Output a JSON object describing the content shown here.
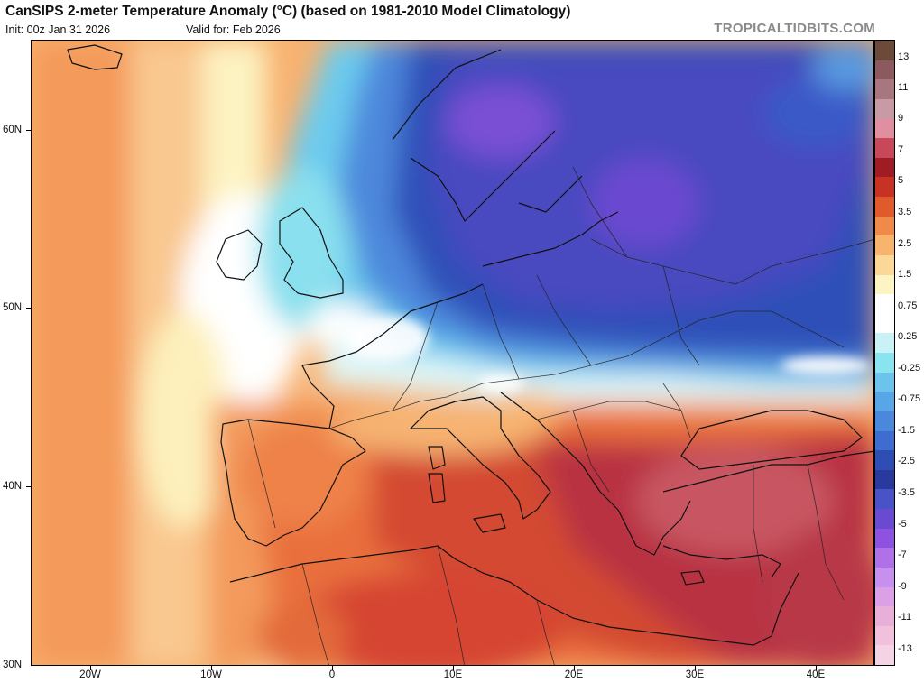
{
  "header": {
    "title": "CanSIPS 2-meter Temperature Anomaly (°C) (based on 1981-2010 Model Climatology)",
    "init": "Init: 00z Jan 31 2026",
    "valid": "Valid for: Feb 2026",
    "brand": "TROPICALTIDBITS.COM"
  },
  "map": {
    "lat_labels": [
      "60N",
      "50N",
      "40N",
      "30N"
    ],
    "lon_labels": [
      "20W",
      "10W",
      "0",
      "10E",
      "20E",
      "30E",
      "40E"
    ]
  },
  "colorbar": {
    "labels": [
      "13",
      "11",
      "9",
      "7",
      "5",
      "3.5",
      "2.5",
      "1.5",
      "0.75",
      "0.25",
      "-0.25",
      "-0.75",
      "-1.5",
      "-2.5",
      "-3.5",
      "-5",
      "-7",
      "-9",
      "-11",
      "-13"
    ],
    "colors": [
      "#6b4a3a",
      "#8c5a5e",
      "#a7767e",
      "#c89aa6",
      "#e08fa0",
      "#c8485a",
      "#a01c24",
      "#c83222",
      "#e05a2c",
      "#ef8a4a",
      "#f7b46c",
      "#fbd898",
      "#fdf4c4",
      "#ffffff",
      "#ffffff",
      "#c8f2f6",
      "#8ae4f0",
      "#6cc4ec",
      "#58a6e6",
      "#4a88dc",
      "#3e6cd0",
      "#2e4eb4",
      "#2a3a9c",
      "#4a52c8",
      "#6a4ad0",
      "#8e52e2",
      "#b070e8",
      "#c890ee",
      "#dca0e6",
      "#e8b0d8",
      "#f0c0dc",
      "#f4d4e4"
    ]
  }
}
